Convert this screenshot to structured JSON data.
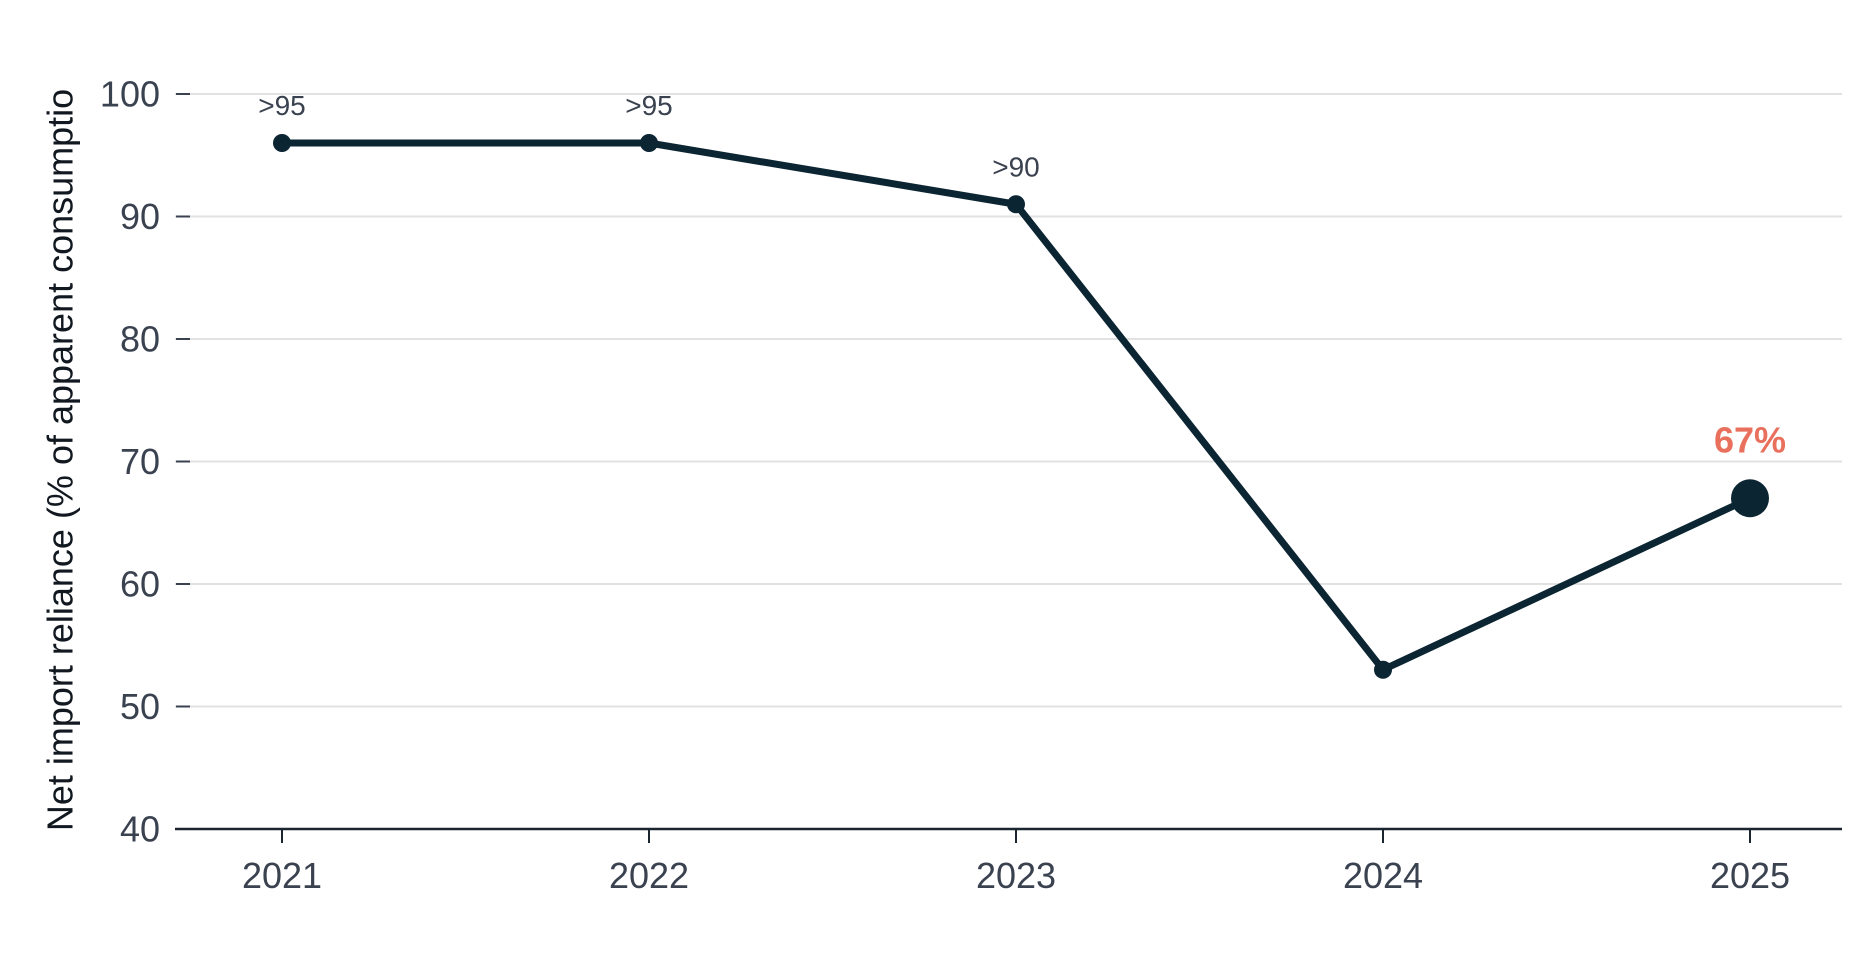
{
  "chart_data": {
    "type": "line",
    "title": "",
    "xlabel": "",
    "ylabel": "Net import reliance (% of apparent consumptio",
    "x": [
      "2021",
      "2022",
      "2023",
      "2024",
      "2025"
    ],
    "series": [
      {
        "values": [
          96,
          96,
          91,
          53,
          67
        ]
      }
    ],
    "data_labels": [
      ">95",
      ">95",
      ">90",
      "",
      "67%"
    ],
    "highlight_index": 4,
    "ylim": [
      40,
      100
    ],
    "yticks": [
      40,
      50,
      60,
      70,
      80,
      90,
      100
    ],
    "grid": "horizontal",
    "colors": {
      "line": "#0c2533",
      "grid": "#e2e2e2",
      "axis": "#1a2530",
      "highlight": "#e8705c"
    }
  }
}
